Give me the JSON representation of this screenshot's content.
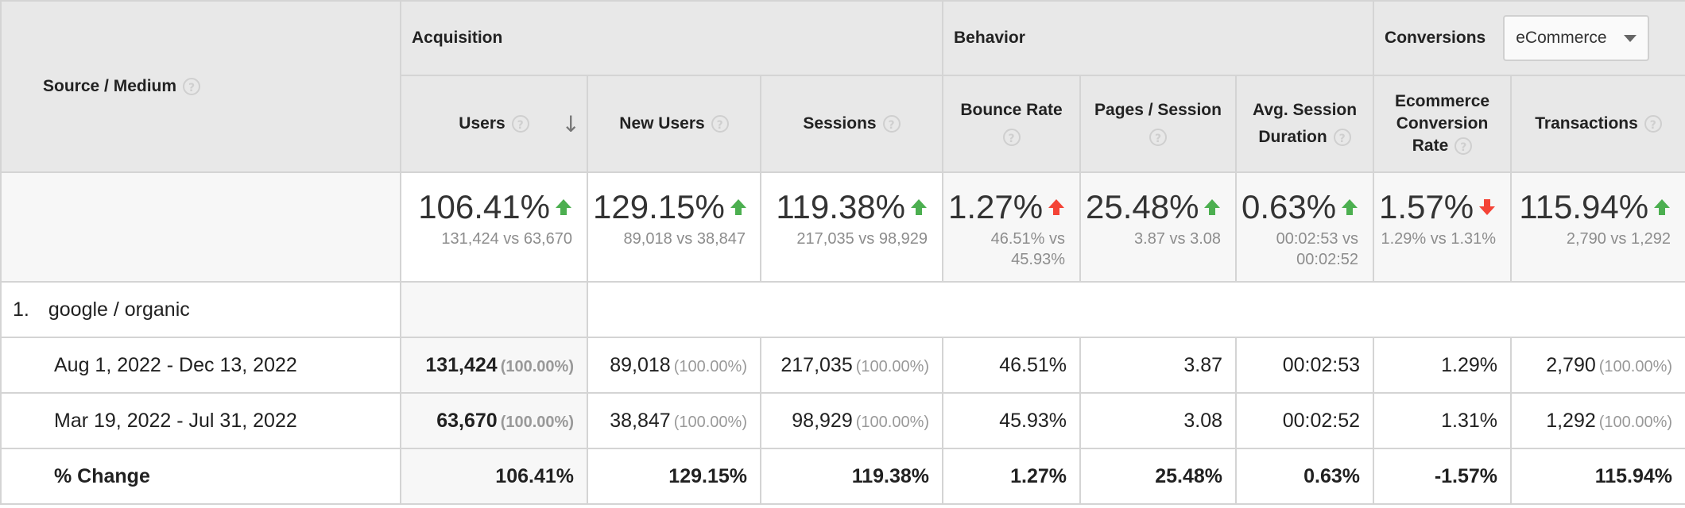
{
  "header": {
    "source_medium": "Source / Medium",
    "groups": {
      "acquisition": "Acquisition",
      "behavior": "Behavior",
      "conversions": "Conversions"
    },
    "conversion_dropdown": "eCommerce",
    "columns": {
      "users": "Users",
      "new_users": "New Users",
      "sessions": "Sessions",
      "bounce_rate": "Bounce Rate",
      "pages_session": "Pages / Session",
      "avg_session_duration": "Avg. Session Duration",
      "ecommerce_conversion_rate": "Ecommerce Conversion Rate",
      "transactions": "Transactions"
    },
    "help_glyph": "?",
    "sort_glyph": "↓"
  },
  "summary": [
    {
      "key": "users",
      "value": "106.41%",
      "compare": "131,424 vs 63,670",
      "trend": "up"
    },
    {
      "key": "new_users",
      "value": "129.15%",
      "compare": "89,018 vs 38,847",
      "trend": "up"
    },
    {
      "key": "sessions",
      "value": "119.38%",
      "compare": "217,035 vs 98,929",
      "trend": "up"
    },
    {
      "key": "bounce_rate",
      "value": "1.27%",
      "compare": "46.51% vs 45.93%",
      "trend": "up-bad"
    },
    {
      "key": "pages_session",
      "value": "25.48%",
      "compare": "3.87 vs 3.08",
      "trend": "up"
    },
    {
      "key": "avg_session_duration",
      "value": "0.63%",
      "compare": "00:02:53 vs 00:02:52",
      "trend": "up"
    },
    {
      "key": "ecommerce_conversion_rate",
      "value": "1.57%",
      "compare": "1.29% vs 1.31%",
      "trend": "down-bad"
    },
    {
      "key": "transactions",
      "value": "115.94%",
      "compare": "2,790 vs 1,292",
      "trend": "up"
    }
  ],
  "rows": {
    "source": {
      "index": "1.",
      "name": "google / organic"
    },
    "period1": {
      "label": "Aug 1, 2022 - Dec 13, 2022",
      "users": "131,424",
      "users_pct": "(100.00%)",
      "new_users": "89,018",
      "new_users_pct": "(100.00%)",
      "sessions": "217,035",
      "sessions_pct": "(100.00%)",
      "bounce_rate": "46.51%",
      "pages_session": "3.87",
      "avg_session_duration": "00:02:53",
      "ecommerce_conversion_rate": "1.29%",
      "transactions": "2,790",
      "transactions_pct": "(100.00%)"
    },
    "period2": {
      "label": "Mar 19, 2022 - Jul 31, 2022",
      "users": "63,670",
      "users_pct": "(100.00%)",
      "new_users": "38,847",
      "new_users_pct": "(100.00%)",
      "sessions": "98,929",
      "sessions_pct": "(100.00%)",
      "bounce_rate": "45.93%",
      "pages_session": "3.08",
      "avg_session_duration": "00:02:52",
      "ecommerce_conversion_rate": "1.31%",
      "transactions": "1,292",
      "transactions_pct": "(100.00%)"
    },
    "change": {
      "label": "% Change",
      "users": "106.41%",
      "new_users": "129.15%",
      "sessions": "119.38%",
      "bounce_rate": "1.27%",
      "pages_session": "25.48%",
      "avg_session_duration": "0.63%",
      "ecommerce_conversion_rate": "-1.57%",
      "transactions": "115.94%"
    }
  },
  "colors": {
    "up": "#4caf50",
    "bad": "#f44336",
    "header_bg": "#e8e8e8",
    "border": "#d4d4d4"
  }
}
